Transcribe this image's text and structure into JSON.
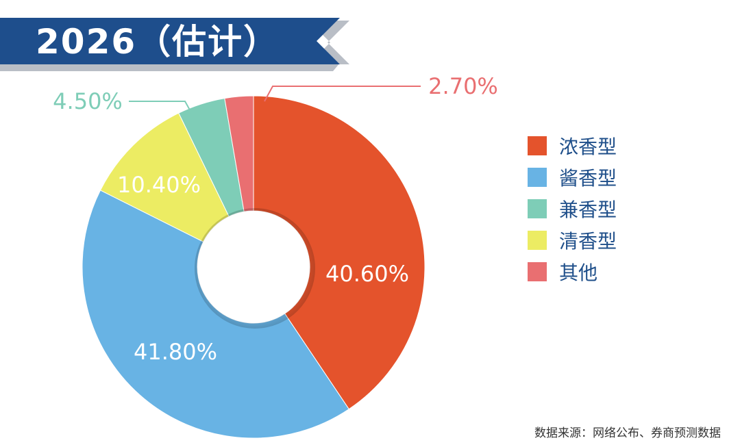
{
  "banner": {
    "title": "2026（估计）"
  },
  "chart_data": {
    "type": "pie",
    "variant": "donut",
    "categories": [
      "浓香型",
      "酱香型",
      "兼香型",
      "清香型",
      "其他"
    ],
    "values": [
      40.6,
      41.8,
      4.5,
      10.4,
      2.7
    ],
    "data_labels": [
      "40.60%",
      "41.80%",
      "4.50%",
      "10.40%",
      "2.70%"
    ],
    "slice_order": [
      "浓香型",
      "酱香型",
      "清香型",
      "兼香型",
      "其他"
    ],
    "colors": {
      "浓香型": "#e4532c",
      "酱香型": "#68b3e4",
      "兼香型": "#7ecdb7",
      "清香型": "#ecec63",
      "其他": "#e96f71"
    },
    "label_colors": {
      "浓香型": "#ffffff",
      "酱香型": "#ffffff",
      "兼香型": "#7ecdb7",
      "清香型": "#ffffff",
      "其他": "#e96f71"
    },
    "legend_position": "right"
  },
  "legend": {
    "items": [
      {
        "label": "浓香型",
        "color": "#e4532c"
      },
      {
        "label": "酱香型",
        "color": "#68b3e4"
      },
      {
        "label": "兼香型",
        "color": "#7ecdb7"
      },
      {
        "label": "清香型",
        "color": "#ecec63"
      },
      {
        "label": "其他",
        "color": "#e96f71"
      }
    ]
  },
  "source": {
    "text": "数据来源：网络公布、券商预测数据"
  },
  "theme": {
    "banner_dark": "#1e4e8c",
    "banner_gray": "#b9bec6"
  }
}
